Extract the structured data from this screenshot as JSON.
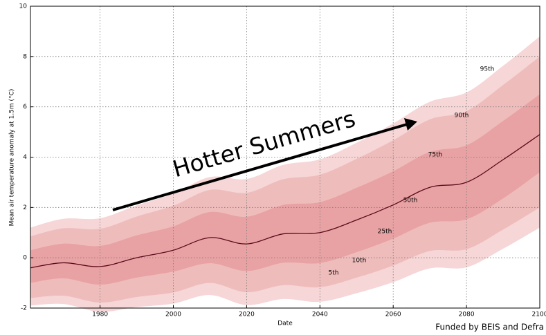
{
  "chart_data": {
    "type": "fan",
    "x_label": "Date",
    "y_label": "Mean air temperature anomaly at 1.5m (°C)",
    "annotation": "Hotter Summers",
    "footer": "Funded by BEIS and Defra",
    "x": [
      1961,
      1970,
      1980,
      1990,
      2000,
      2010,
      2020,
      2030,
      2040,
      2050,
      2060,
      2070,
      2080,
      2090,
      2100
    ],
    "series": [
      {
        "name": "95th",
        "color": "#f6d6d6",
        "values": [
          1.2,
          1.55,
          1.57,
          2.08,
          2.55,
          3.21,
          3.13,
          3.69,
          3.91,
          4.57,
          5.34,
          6.2,
          6.57,
          7.63,
          8.8
        ]
      },
      {
        "name": "90th",
        "color": "#efbcbc",
        "values": [
          0.85,
          1.17,
          1.15,
          1.64,
          2.07,
          2.7,
          2.58,
          3.12,
          3.3,
          3.93,
          4.67,
          5.5,
          5.83,
          6.87,
          8.0
        ]
      },
      {
        "name": "75th",
        "color": "#e8a2a4",
        "values": [
          0.3,
          0.56,
          0.47,
          0.89,
          1.25,
          1.82,
          1.63,
          2.1,
          2.21,
          2.78,
          3.44,
          4.21,
          4.47,
          5.44,
          6.5
        ]
      },
      {
        "name": "50th",
        "color": "#5a0a1a",
        "values": [
          -0.4,
          -0.2,
          -0.35,
          0.0,
          0.3,
          0.8,
          0.55,
          0.95,
          1.0,
          1.5,
          2.1,
          2.8,
          3.0,
          3.9,
          4.9
        ]
      },
      {
        "name": "25th",
        "color": "#e8a2a4",
        "values": [
          -1.0,
          -0.82,
          -1.07,
          -0.79,
          -0.55,
          -0.22,
          -0.53,
          -0.2,
          -0.21,
          0.22,
          0.76,
          1.39,
          1.53,
          2.36,
          3.4
        ]
      },
      {
        "name": "10th",
        "color": "#efbcbc",
        "values": [
          -1.6,
          -1.51,
          -1.78,
          -1.56,
          -1.38,
          -1.0,
          -1.37,
          -1.09,
          -1.17,
          -0.79,
          -0.31,
          0.27,
          0.34,
          1.12,
          2.0
        ]
      },
      {
        "name": "5th",
        "color": "#f6d6d6",
        "values": [
          -1.9,
          -1.84,
          -2.15,
          -1.96,
          -1.82,
          -1.48,
          -1.88,
          -1.64,
          -1.75,
          -1.41,
          -0.97,
          -0.42,
          -0.38,
          0.36,
          1.2
        ]
      }
    ],
    "xlim": [
      1961,
      2100
    ],
    "ylim": [
      -2,
      10
    ],
    "xticks": [
      1980,
      2000,
      2020,
      2040,
      2060,
      2080,
      2100
    ],
    "yticks": [
      -2,
      0,
      2,
      4,
      6,
      8,
      10
    ],
    "grid": true
  }
}
